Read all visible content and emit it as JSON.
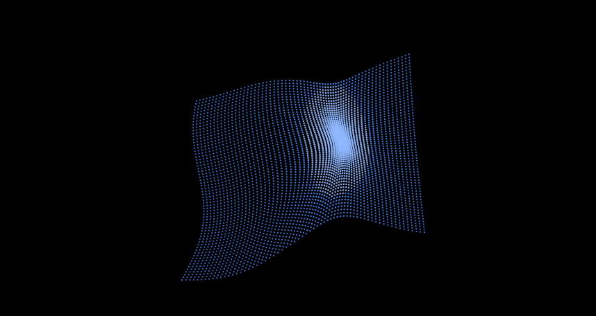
{
  "scene": {
    "background_color": "#000000",
    "point_color": "#4a8cff",
    "point_highlight_color": "#8fb8ff",
    "shape": "dotted-wave-surface",
    "grid_rows": 64,
    "grid_cols": 64
  }
}
